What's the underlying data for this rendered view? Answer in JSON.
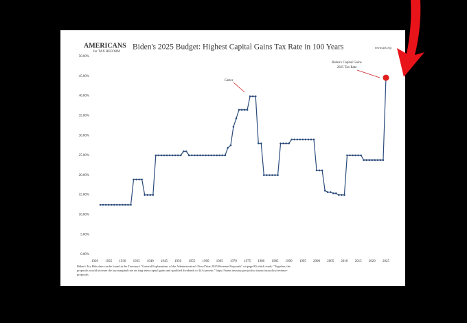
{
  "chart_data": {
    "type": "line",
    "title": "Biden's 2025 Budget: Highest Capital Gains Tax Rate in 100 Years",
    "logo": [
      "AMERICANS",
      "for TAX REFORM"
    ],
    "website": "www.atr.org",
    "annotations": [
      {
        "text": [
          "Carter"
        ]
      },
      {
        "text": [
          "Biden's Capital Gains",
          "2025 Tax Rate"
        ]
      }
    ],
    "footnote": [
      "Biden's Tax Hike data can be found in the Treasury's \"General Explanations of the Administration's Fiscal Year 2025 Revenue Proposals\" on page 80 which reads: \"Together, the",
      "proposals would increase the top marginal rate on long-term capital gains and qualified dividends to 44.6 percent.\"  https://home.treasury.gov/policy-issues/tax-policy/revenue-",
      "proposals"
    ],
    "x": [
      1922,
      1923,
      1924,
      1925,
      1926,
      1927,
      1928,
      1929,
      1930,
      1931,
      1932,
      1933,
      1934,
      1935,
      1936,
      1937,
      1938,
      1939,
      1940,
      1941,
      1942,
      1943,
      1944,
      1945,
      1946,
      1947,
      1948,
      1949,
      1950,
      1951,
      1952,
      1953,
      1954,
      1955,
      1956,
      1957,
      1958,
      1959,
      1960,
      1961,
      1962,
      1963,
      1964,
      1965,
      1966,
      1967,
      1968,
      1969,
      1970,
      1971,
      1972,
      1973,
      1974,
      1975,
      1976,
      1977,
      1978,
      1979,
      1980,
      1981,
      1982,
      1983,
      1984,
      1985,
      1986,
      1987,
      1988,
      1989,
      1990,
      1991,
      1992,
      1993,
      1994,
      1995,
      1996,
      1997,
      1998,
      1999,
      2000,
      2001,
      2002,
      2003,
      2004,
      2005,
      2006,
      2007,
      2008,
      2009,
      2010,
      2011,
      2012,
      2013,
      2014,
      2015,
      2016,
      2017,
      2018,
      2019,
      2020,
      2021,
      2022,
      2023,
      2024,
      2025
    ],
    "series": [
      {
        "color": "#2a4a7a",
        "last_point_color": "#e0201c",
        "values": [
          12.5,
          12.5,
          12.5,
          12.5,
          12.5,
          12.5,
          12.5,
          12.5,
          12.5,
          12.5,
          12.5,
          12.5,
          18.9,
          18.9,
          18.9,
          18.9,
          15,
          15,
          15,
          15,
          25,
          25,
          25,
          25,
          25,
          25,
          25,
          25,
          25,
          25,
          26,
          26,
          25,
          25,
          25,
          25,
          25,
          25,
          25,
          25,
          25,
          25,
          25,
          25,
          25,
          25,
          26.9,
          27.5,
          32.2,
          34.3,
          36.5,
          36.5,
          36.5,
          36.5,
          39.9,
          39.9,
          39.9,
          28,
          28,
          20,
          20,
          20,
          20,
          20,
          20,
          28,
          28,
          28,
          28,
          29,
          29,
          29,
          29,
          29,
          29,
          29,
          29,
          29,
          21.2,
          21.2,
          21.2,
          16.1,
          15.7,
          15.7,
          15.4,
          15.4,
          15,
          15,
          15,
          25,
          25,
          25,
          25,
          25,
          25,
          23.8,
          23.8,
          23.8,
          23.8,
          23.8,
          23.8,
          23.8,
          23.8,
          44.6
        ]
      }
    ],
    "xlim": [
      1920,
      2025
    ],
    "xticks": [
      1920,
      1925,
      1930,
      1935,
      1940,
      1945,
      1950,
      1955,
      1960,
      1965,
      1970,
      1975,
      1980,
      1985,
      1990,
      1995,
      2000,
      2005,
      2010,
      2015,
      2020,
      2025
    ],
    "ylim": [
      0,
      50
    ],
    "yticks": [
      {
        "value": 0,
        "label": "0.00%"
      },
      {
        "value": 5,
        "label": "5.00%"
      },
      {
        "value": 10,
        "label": "10.00%"
      },
      {
        "value": 15,
        "label": "15.00%"
      },
      {
        "value": 20,
        "label": "20.00%"
      },
      {
        "value": 25,
        "label": "25.00%"
      },
      {
        "value": 30,
        "label": "30.00%"
      },
      {
        "value": 35,
        "label": "35.00%"
      },
      {
        "value": 40,
        "label": "40.00%"
      },
      {
        "value": 45,
        "label": "45.00%"
      },
      {
        "value": 50,
        "label": "50.00%"
      }
    ]
  }
}
